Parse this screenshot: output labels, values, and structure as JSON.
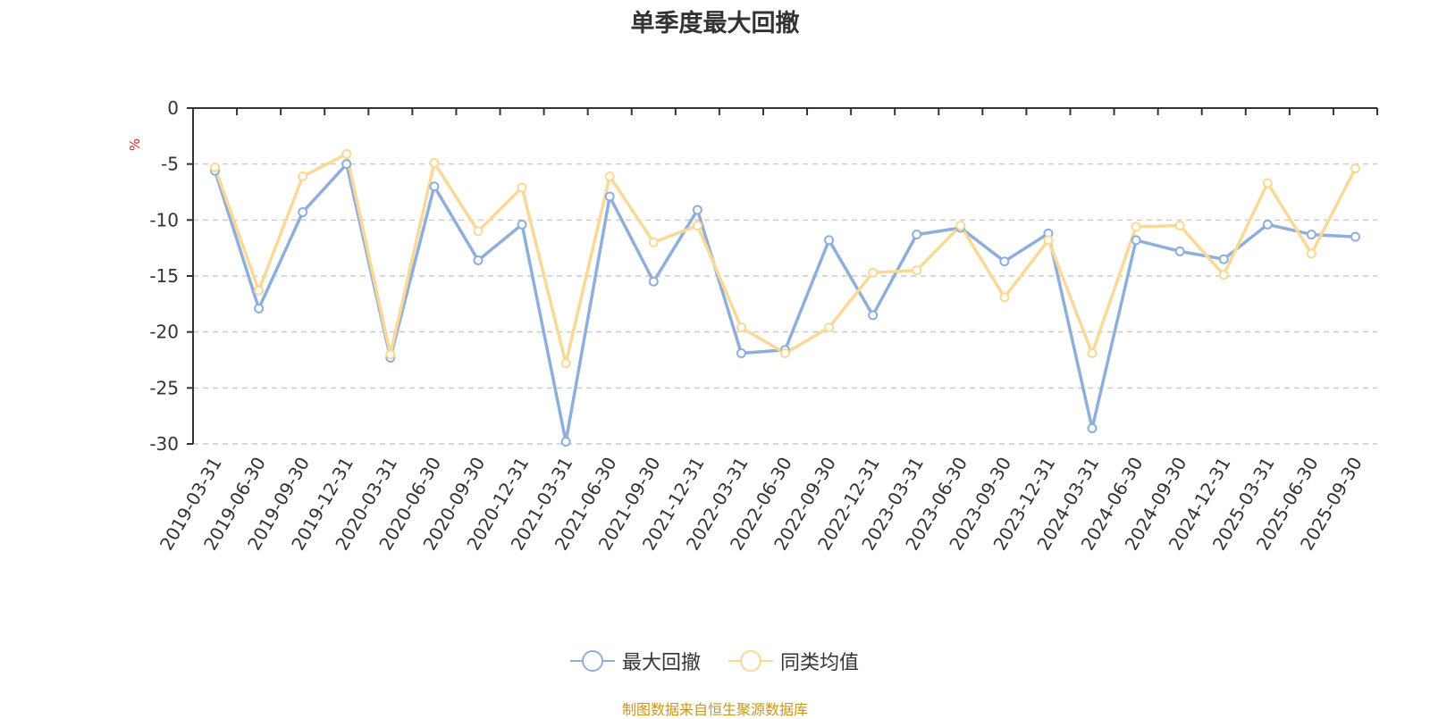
{
  "chart_data": {
    "type": "line",
    "title": "单季度最大回撤",
    "ylabel": "%",
    "ylim": [
      -30,
      0
    ],
    "yticks": [
      0,
      -5,
      -10,
      -15,
      -20,
      -25,
      -30
    ],
    "grid": true,
    "legend_position": "bottom",
    "x": [
      "2019-03-31",
      "2019-06-30",
      "2019-09-30",
      "2019-12-31",
      "2020-03-31",
      "2020-06-30",
      "2020-09-30",
      "2020-12-31",
      "2021-03-31",
      "2021-06-30",
      "2021-09-30",
      "2021-12-31",
      "2022-03-31",
      "2022-06-30",
      "2022-09-30",
      "2022-12-31",
      "2023-03-31",
      "2023-06-30",
      "2023-09-30",
      "2023-12-31",
      "2024-03-31",
      "2024-06-30",
      "2024-09-30",
      "2024-12-31",
      "2025-03-31",
      "2025-06-30",
      "2025-09-30"
    ],
    "series": [
      {
        "name": "最大回撤",
        "color": "#8eaedb",
        "values": [
          -5.6,
          -17.9,
          -9.3,
          -5.0,
          -22.3,
          -7.0,
          -13.6,
          -10.4,
          -29.8,
          -7.9,
          -15.5,
          -9.1,
          -21.9,
          -21.6,
          -11.8,
          -18.5,
          -11.3,
          -10.7,
          -13.7,
          -11.2,
          -28.6,
          -11.8,
          -12.8,
          -13.5,
          -10.4,
          -11.3,
          -11.5
        ]
      },
      {
        "name": "同类均值",
        "color": "#fad996",
        "values": [
          -5.3,
          -16.3,
          -6.1,
          -4.1,
          -22.0,
          -4.9,
          -11.0,
          -7.1,
          -22.8,
          -6.1,
          -12.0,
          -10.5,
          -19.6,
          -21.9,
          -19.6,
          -14.7,
          -14.5,
          -10.5,
          -16.9,
          -11.8,
          -21.9,
          -10.6,
          -10.5,
          -14.9,
          -6.7,
          -13.0,
          -5.4
        ]
      }
    ]
  },
  "legend": {
    "items": [
      {
        "label": "最大回撤",
        "color": "#8eaedb"
      },
      {
        "label": "同类均值",
        "color": "#fad996"
      }
    ]
  },
  "footer": {
    "source_note": "制图数据来自恒生聚源数据库"
  },
  "colors": {
    "axis": "#333333",
    "grid": "#cccccc",
    "ylabel": "#e02020",
    "source": "#c8961e"
  }
}
